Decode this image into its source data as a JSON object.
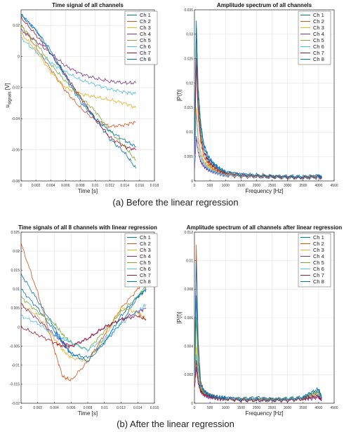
{
  "captions": {
    "top": "(a) Before the linear regression",
    "bottom": "(b) After the linear regression"
  },
  "series_colors": [
    "#0072bd",
    "#d95319",
    "#edb120",
    "#7e2f8e",
    "#77ac30",
    "#4dbeee",
    "#a2142f",
    "#0072bd"
  ],
  "chart_data": [
    {
      "type": "line",
      "title": "Time signal of all channels",
      "xlabel": "Time [s]",
      "ylabel": "u_signals [V]",
      "ylabel_main": "u",
      "ylabel_sub": "signals",
      "ylabel_unit": " [V]",
      "xlim": [
        0,
        0.018
      ],
      "ylim": [
        -0.08,
        0.03
      ],
      "xticks": [
        0,
        0.002,
        0.004,
        0.006,
        0.008,
        0.01,
        0.012,
        0.014,
        0.016,
        0.018
      ],
      "xtick_labels": [
        "0",
        "0.002",
        "0.004",
        "0.006",
        "0.008",
        "0.01",
        "0.012",
        "0.014",
        "0.016",
        "0.018"
      ],
      "yticks": [
        -0.08,
        -0.06,
        -0.04,
        -0.02,
        0,
        0.02
      ],
      "ytick_labels": [
        "-0.08",
        "-0.06",
        "-0.04",
        "-0.02",
        "0",
        "0.02"
      ],
      "legend_position": "top-right",
      "grid": true,
      "x": [
        0,
        0.002,
        0.004,
        0.006,
        0.008,
        0.01,
        0.012,
        0.014,
        0.0155
      ],
      "series": [
        {
          "name": "Ch 1",
          "values": [
            0.027,
            0.017,
            0.004,
            -0.012,
            -0.027,
            -0.04,
            -0.053,
            -0.062,
            -0.072
          ]
        },
        {
          "name": "Ch 2",
          "values": [
            0.02,
            0.006,
            -0.008,
            -0.022,
            -0.033,
            -0.041,
            -0.045,
            -0.044,
            -0.042
          ]
        },
        {
          "name": "Ch 3",
          "values": [
            0.015,
            0.004,
            -0.01,
            -0.02,
            -0.024,
            -0.026,
            -0.028,
            -0.03,
            -0.033
          ]
        },
        {
          "name": "Ch 4",
          "values": [
            0.017,
            0.01,
            0.002,
            -0.006,
            -0.011,
            -0.014,
            -0.016,
            -0.017,
            -0.017
          ]
        },
        {
          "name": "Ch 5",
          "values": [
            0.02,
            0.009,
            -0.005,
            -0.016,
            -0.026,
            -0.035,
            -0.048,
            -0.058,
            -0.067
          ]
        },
        {
          "name": "Ch 6",
          "values": [
            0.012,
            0.003,
            -0.004,
            -0.01,
            -0.015,
            -0.018,
            -0.021,
            -0.023,
            -0.024
          ]
        },
        {
          "name": "Ch 7",
          "values": [
            0.025,
            0.014,
            0.002,
            -0.012,
            -0.026,
            -0.04,
            -0.052,
            -0.058,
            -0.06
          ]
        },
        {
          "name": "Ch 8",
          "values": [
            0.027,
            0.017,
            0.002,
            -0.013,
            -0.029,
            -0.04,
            -0.048,
            -0.054,
            -0.058
          ]
        }
      ]
    },
    {
      "type": "line",
      "title": "Amplitude spectrum of all channels",
      "xlabel": "Frequency [Hz]",
      "ylabel": "|P(f)|",
      "xlim": [
        0,
        4500
      ],
      "ylim": [
        0,
        0.035
      ],
      "xticks": [
        0,
        500,
        1000,
        1500,
        2000,
        2500,
        3000,
        3500,
        4000,
        4500
      ],
      "xtick_labels": [
        "0",
        "500",
        "1000",
        "1500",
        "2000",
        "2500",
        "3000",
        "3500",
        "4000",
        "4500"
      ],
      "yticks": [
        0,
        0.005,
        0.01,
        0.015,
        0.02,
        0.025,
        0.03,
        0.035
      ],
      "ytick_labels": [
        "0",
        "0.005",
        "0.01",
        "0.015",
        "0.02",
        "0.025",
        "0.03",
        "0.035"
      ],
      "legend_position": "top-right",
      "grid": true,
      "x": [
        0,
        60,
        120,
        200,
        300,
        450,
        600,
        800,
        1000,
        1500,
        2000,
        2500,
        3000,
        3500,
        4000,
        4100
      ],
      "series": [
        {
          "name": "Ch 1",
          "values": [
            0.006,
            0.031,
            0.018,
            0.011,
            0.007,
            0.0045,
            0.0035,
            0.0025,
            0.0018,
            0.0013,
            0.0011,
            0.001,
            0.0009,
            0.0008,
            0.001,
            0.0007
          ]
        },
        {
          "name": "Ch 2",
          "values": [
            0.004,
            0.024,
            0.013,
            0.008,
            0.005,
            0.0035,
            0.0025,
            0.0018,
            0.0014,
            0.0011,
            0.001,
            0.0009,
            0.0008,
            0.0007,
            0.0009,
            0.0006
          ]
        },
        {
          "name": "Ch 3",
          "values": [
            0.003,
            0.015,
            0.009,
            0.006,
            0.004,
            0.003,
            0.0022,
            0.0016,
            0.0012,
            0.001,
            0.0009,
            0.0008,
            0.0007,
            0.0006,
            0.0008,
            0.0005
          ]
        },
        {
          "name": "Ch 4",
          "values": [
            0.002,
            0.009,
            0.006,
            0.004,
            0.003,
            0.0022,
            0.0018,
            0.0014,
            0.0011,
            0.0009,
            0.0008,
            0.0007,
            0.0007,
            0.0006,
            0.0007,
            0.0005
          ]
        },
        {
          "name": "Ch 5",
          "values": [
            0.005,
            0.028,
            0.016,
            0.01,
            0.006,
            0.004,
            0.003,
            0.0022,
            0.0017,
            0.0012,
            0.001,
            0.0009,
            0.0008,
            0.0008,
            0.0009,
            0.0006
          ]
        },
        {
          "name": "Ch 6",
          "values": [
            0.003,
            0.014,
            0.008,
            0.005,
            0.0035,
            0.0025,
            0.002,
            0.0015,
            0.0012,
            0.001,
            0.0009,
            0.0008,
            0.0007,
            0.0006,
            0.0008,
            0.0005
          ]
        },
        {
          "name": "Ch 7",
          "values": [
            0.005,
            0.025,
            0.015,
            0.009,
            0.006,
            0.004,
            0.003,
            0.0021,
            0.0016,
            0.0012,
            0.001,
            0.0009,
            0.0008,
            0.0007,
            0.0009,
            0.0006
          ]
        },
        {
          "name": "Ch 8",
          "values": [
            0.006,
            0.033,
            0.019,
            0.012,
            0.0075,
            0.005,
            0.0037,
            0.0026,
            0.0019,
            0.0014,
            0.0012,
            0.001,
            0.0009,
            0.0009,
            0.0011,
            0.0007
          ]
        }
      ]
    },
    {
      "type": "line",
      "title": "Time signals of all 8 channels with linear regression",
      "xlabel": "Time [s]",
      "ylabel": "",
      "xlim": [
        0,
        0.016
      ],
      "ylim": [
        -0.02,
        0.025
      ],
      "xticks": [
        0,
        0.002,
        0.004,
        0.006,
        0.008,
        0.01,
        0.012,
        0.014,
        0.016
      ],
      "xtick_labels": [
        "0",
        "0.002",
        "0.004",
        "0.006",
        "0.008",
        "0.01",
        "0.012",
        "0.014",
        "0.016"
      ],
      "yticks": [
        -0.02,
        -0.015,
        -0.01,
        -0.005,
        0,
        0.005,
        0.01,
        0.015,
        0.02,
        0.025
      ],
      "ytick_labels": [
        "-0.02",
        "-0.015",
        "-0.01",
        "-0.005",
        "0",
        "0.005",
        "0.01",
        "0.015",
        "0.02",
        "0.025"
      ],
      "legend_position": "top-right",
      "grid": true,
      "x": [
        0,
        0.002,
        0.004,
        0.005,
        0.006,
        0.008,
        0.01,
        0.012,
        0.014,
        0.015
      ],
      "series": [
        {
          "name": "Ch 1",
          "values": [
            0.01,
            0.005,
            -0.001,
            -0.004,
            -0.007,
            -0.008,
            -0.004,
            0.001,
            0.008,
            0.01
          ]
        },
        {
          "name": "Ch 2",
          "values": [
            0.022,
            0.009,
            -0.006,
            -0.013,
            -0.014,
            -0.009,
            -0.002,
            0.005,
            0.01,
            0.013
          ]
        },
        {
          "name": "Ch 3",
          "values": [
            0.006,
            0.003,
            -0.003,
            -0.006,
            -0.008,
            -0.009,
            -0.003,
            0.005,
            0.004,
            0.002
          ]
        },
        {
          "name": "Ch 4",
          "values": [
            0.006,
            0.002,
            -0.002,
            -0.004,
            -0.005,
            -0.003,
            0.0,
            0.002,
            0.004,
            0.005
          ]
        },
        {
          "name": "Ch 5",
          "values": [
            0.008,
            0.004,
            0.001,
            -0.002,
            -0.004,
            -0.006,
            -0.001,
            0.004,
            0.008,
            0.011
          ]
        },
        {
          "name": "Ch 6",
          "values": [
            0.003,
            0.001,
            -0.002,
            -0.003,
            -0.004,
            -0.006,
            -0.003,
            0.001,
            0.004,
            0.006
          ]
        },
        {
          "name": "Ch 7",
          "values": [
            0.0,
            -0.002,
            -0.004,
            -0.005,
            -0.005,
            -0.003,
            0.0,
            0.002,
            0.003,
            0.002
          ]
        },
        {
          "name": "Ch 8",
          "values": [
            0.014,
            0.007,
            0.0,
            -0.004,
            -0.007,
            -0.009,
            -0.004,
            0.003,
            0.008,
            0.01
          ]
        }
      ]
    },
    {
      "type": "line",
      "title": "Amplitude spectrum of all channels after linear regression",
      "xlabel": "Frequency [Hz]",
      "ylabel": "|P(f)|",
      "xlim": [
        0,
        4500
      ],
      "ylim": [
        0,
        0.012
      ],
      "xticks": [
        0,
        500,
        1000,
        1500,
        2000,
        2500,
        3000,
        3500,
        4000,
        4500
      ],
      "xtick_labels": [
        "0",
        "500",
        "1000",
        "1500",
        "2000",
        "2500",
        "3000",
        "3500",
        "4000",
        "4500"
      ],
      "yticks": [
        0,
        0.002,
        0.004,
        0.006,
        0.008,
        0.01,
        0.012
      ],
      "ytick_labels": [
        "0",
        "0.002",
        "0.004",
        "0.006",
        "0.008",
        "0.01",
        "0.012"
      ],
      "legend_position": "top-right",
      "grid": true,
      "x": [
        0,
        60,
        120,
        200,
        300,
        450,
        600,
        800,
        1000,
        1500,
        2000,
        2500,
        3000,
        3500,
        3700,
        4000,
        4100
      ],
      "series": [
        {
          "name": "Ch 1",
          "values": [
            0.001,
            0.0075,
            0.003,
            0.0012,
            0.0008,
            0.0006,
            0.0005,
            0.0004,
            0.0004,
            0.0003,
            0.0004,
            0.0003,
            0.0003,
            0.0004,
            0.0006,
            0.0009,
            0.0004
          ]
        },
        {
          "name": "Ch 2",
          "values": [
            0.002,
            0.011,
            0.0045,
            0.0015,
            0.0009,
            0.0006,
            0.0005,
            0.0004,
            0.0003,
            0.0003,
            0.0003,
            0.0003,
            0.0003,
            0.0003,
            0.0005,
            0.0007,
            0.0003
          ]
        },
        {
          "name": "Ch 3",
          "values": [
            0.001,
            0.004,
            0.002,
            0.001,
            0.0007,
            0.0005,
            0.0004,
            0.0003,
            0.0003,
            0.0003,
            0.0002,
            0.0002,
            0.0003,
            0.0003,
            0.0004,
            0.0005,
            0.0003
          ]
        },
        {
          "name": "Ch 4",
          "values": [
            0.001,
            0.0025,
            0.0014,
            0.0008,
            0.0006,
            0.0004,
            0.0004,
            0.0003,
            0.0003,
            0.0002,
            0.0002,
            0.0002,
            0.0002,
            0.0003,
            0.0003,
            0.0004,
            0.0002
          ]
        },
        {
          "name": "Ch 5",
          "values": [
            0.001,
            0.006,
            0.0025,
            0.0011,
            0.0008,
            0.0006,
            0.0005,
            0.0004,
            0.0003,
            0.0003,
            0.0003,
            0.0003,
            0.0003,
            0.0004,
            0.0006,
            0.0008,
            0.0003
          ]
        },
        {
          "name": "Ch 6",
          "values": [
            0.001,
            0.0035,
            0.0018,
            0.0009,
            0.0006,
            0.0005,
            0.0004,
            0.0003,
            0.0003,
            0.0003,
            0.0002,
            0.0002,
            0.0003,
            0.0003,
            0.0004,
            0.0006,
            0.0003
          ]
        },
        {
          "name": "Ch 7",
          "values": [
            0.001,
            0.003,
            0.0016,
            0.0009,
            0.0006,
            0.0005,
            0.0004,
            0.0003,
            0.0003,
            0.0002,
            0.0002,
            0.0002,
            0.0002,
            0.0003,
            0.0004,
            0.0005,
            0.0002
          ]
        },
        {
          "name": "Ch 8",
          "values": [
            0.002,
            0.01,
            0.004,
            0.0014,
            0.0009,
            0.0006,
            0.0005,
            0.0004,
            0.0004,
            0.0003,
            0.0003,
            0.0003,
            0.0003,
            0.0004,
            0.0007,
            0.001,
            0.0004
          ]
        }
      ]
    }
  ]
}
